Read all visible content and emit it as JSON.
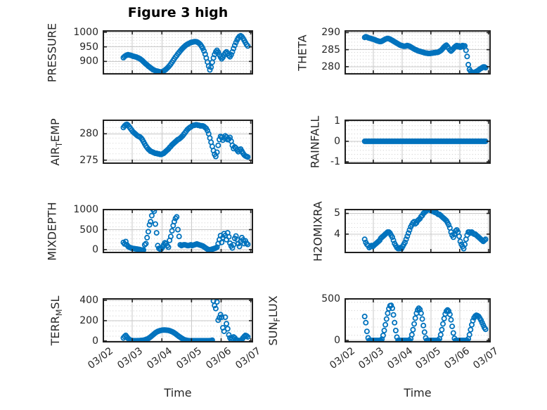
{
  "chart_data": {
    "type": "scatter",
    "figure_title": "Figure 3 high",
    "marker": "o",
    "colors": {
      "marker": "#0072bd",
      "major_grid": "#c9c9c9",
      "minor_grid_dots": "#c6c6c6",
      "axis_frame": "#1f1f1f",
      "text": "#262626",
      "title": "#000000"
    },
    "x_axis": {
      "label": "Time",
      "tick_labels": [
        "03/02",
        "03/03",
        "03/04",
        "03/05",
        "03/06",
        "03/07"
      ],
      "x_encoding": "days after 03/02",
      "xlim": [
        0,
        5.08
      ]
    },
    "subplots": [
      {
        "name": "pressure",
        "row": 0,
        "col": 0,
        "ylabel_parts": [
          {
            "t": "PRESSURE"
          }
        ],
        "yticks": [
          900,
          950,
          1000
        ],
        "ylim": [
          855,
          1007
        ],
        "yminor": 10,
        "series": {
          "x0": 0.7,
          "dx": 0.04,
          "y": [
            913,
            917,
            920,
            922,
            923,
            922,
            921,
            920,
            918,
            917,
            916,
            915,
            913,
            911,
            909,
            906,
            903,
            899,
            895,
            891,
            888,
            884,
            881,
            878,
            875,
            872,
            870,
            868,
            867,
            866,
            865,
            864,
            864,
            865,
            867,
            870,
            873,
            877,
            881,
            886,
            891,
            897,
            903,
            909,
            915,
            920,
            926,
            931,
            936,
            941,
            945,
            949,
            953,
            956,
            959,
            961,
            963,
            965,
            966,
            967,
            968,
            968,
            967,
            965,
            962,
            958,
            952,
            945,
            936,
            925,
            912,
            898,
            884,
            871,
            880,
            897,
            912,
            924,
            933,
            938,
            932,
            923,
            915,
            909,
            914,
            922,
            929,
            933,
            928,
            920,
            916,
            923,
            933,
            944,
            955,
            965,
            974,
            981,
            986,
            988,
            985,
            979,
            972,
            965,
            958,
            953
          ]
        }
      },
      {
        "name": "theta",
        "row": 0,
        "col": 1,
        "ylabel_parts": [
          {
            "t": "THETA"
          }
        ],
        "yticks": [
          280,
          285,
          290
        ],
        "ylim": [
          277.7,
          290.7
        ],
        "yminor": 1,
        "series": {
          "x0": 0.7,
          "dx": 0.04,
          "y": [
            288.6,
            288.8,
            288.7,
            288.5,
            288.4,
            288.3,
            288.2,
            288.1,
            288.0,
            287.9,
            287.7,
            287.6,
            287.5,
            287.4,
            287.4,
            287.5,
            287.7,
            287.9,
            288.1,
            288.2,
            288.3,
            288.2,
            288.1,
            287.9,
            287.7,
            287.5,
            287.3,
            287.1,
            286.9,
            286.7,
            286.5,
            286.3,
            286.2,
            286.1,
            286.0,
            286.0,
            286.1,
            286.2,
            286.1,
            286.0,
            285.8,
            285.6,
            285.4,
            285.2,
            285.0,
            284.9,
            284.7,
            284.6,
            284.5,
            284.4,
            284.3,
            284.2,
            284.1,
            284.0,
            284.0,
            283.9,
            283.9,
            283.9,
            284.0,
            284.0,
            284.1,
            284.1,
            284.2,
            284.2,
            284.3,
            284.5,
            284.7,
            285.0,
            285.4,
            285.8,
            286.1,
            286.3,
            285.9,
            285.4,
            284.9,
            284.6,
            284.9,
            285.3,
            285.7,
            286.0,
            286.2,
            285.9,
            286.1,
            285.7,
            286.0,
            286.2,
            285.9,
            286.1,
            284.8,
            283.0,
            280.6,
            279.2,
            278.7,
            278.4,
            278.2,
            278.3,
            278.4,
            278.6,
            278.8,
            279.0,
            279.3,
            279.5,
            279.7,
            279.9,
            279.9,
            279.7
          ]
        }
      },
      {
        "name": "air_temp",
        "row": 1,
        "col": 0,
        "ylabel_parts": [
          {
            "t": "AIR"
          },
          {
            "t": "T",
            "sub": true
          },
          {
            "t": "EMP"
          }
        ],
        "yticks": [
          275,
          280
        ],
        "ylim": [
          274.3,
          282.7
        ],
        "yminor": 1,
        "series": {
          "x0": 0.7,
          "dx": 0.04,
          "y": [
            281.2,
            281.5,
            281.7,
            281.8,
            281.6,
            281.3,
            281.0,
            280.7,
            280.4,
            280.2,
            280.0,
            279.8,
            279.6,
            279.5,
            279.4,
            279.2,
            278.9,
            278.5,
            278.1,
            277.7,
            277.4,
            277.1,
            276.9,
            276.7,
            276.6,
            276.5,
            276.4,
            276.3,
            276.3,
            276.2,
            276.2,
            276.1,
            276.1,
            276.2,
            276.3,
            276.5,
            276.7,
            276.9,
            277.1,
            277.4,
            277.6,
            277.9,
            278.1,
            278.3,
            278.5,
            278.7,
            278.9,
            279.0,
            279.2,
            279.4,
            279.6,
            279.9,
            280.2,
            280.5,
            280.8,
            281.0,
            281.2,
            281.3,
            281.5,
            281.6,
            281.6,
            281.7,
            281.7,
            281.6,
            281.6,
            281.5,
            281.5,
            281.5,
            281.4,
            281.2,
            281.0,
            280.6,
            280.0,
            279.2,
            278.4,
            277.6,
            276.8,
            276.1,
            275.7,
            276.5,
            277.8,
            278.9,
            279.5,
            279.3,
            278.8,
            279.2,
            279.6,
            279.4,
            278.9,
            279.0,
            279.3,
            278.6,
            277.8,
            277.2,
            277.5,
            277.3,
            276.9,
            276.6,
            276.9,
            277.1,
            276.7,
            276.3,
            276.0,
            275.8,
            275.7,
            275.6
          ]
        }
      },
      {
        "name": "rainfall",
        "row": 1,
        "col": 1,
        "ylabel_parts": [
          {
            "t": "RAINFALL"
          }
        ],
        "yticks": [
          -1,
          0,
          1
        ],
        "ylim": [
          -1.1,
          1.06
        ],
        "yminor": 0.2,
        "series": {
          "x0": 0.7,
          "dx": 0.04,
          "y": [
            0,
            0,
            0,
            0,
            0,
            0,
            0,
            0,
            0,
            0,
            0,
            0,
            0,
            0,
            0,
            0,
            0,
            0,
            0,
            0,
            0,
            0,
            0,
            0,
            0,
            0,
            0,
            0,
            0,
            0,
            0,
            0,
            0,
            0,
            0,
            0,
            0,
            0,
            0,
            0,
            0,
            0,
            0,
            0,
            0,
            0,
            0,
            0,
            0,
            0,
            0,
            0,
            0,
            0,
            0,
            0,
            0,
            0,
            0,
            0,
            0,
            0,
            0,
            0,
            0,
            0,
            0,
            0,
            0,
            0,
            0,
            0,
            0,
            0,
            0,
            0,
            0,
            0,
            0,
            0,
            0,
            0,
            0,
            0,
            0,
            0,
            0,
            0,
            0,
            0,
            0,
            0,
            0,
            0,
            0,
            0,
            0,
            0,
            0,
            0,
            0,
            0,
            0,
            0,
            0,
            0
          ]
        }
      },
      {
        "name": "mixdepth",
        "row": 2,
        "col": 0,
        "ylabel_parts": [
          {
            "t": "MIXDEPTH"
          }
        ],
        "yticks": [
          0,
          500,
          1000
        ],
        "ylim": [
          -90,
          1020
        ],
        "yminor": 100,
        "series": {
          "x0": 0.7,
          "dx": 0.04,
          "y": [
            180,
            140,
            200,
            120,
            80,
            60,
            45,
            35,
            30,
            25,
            20,
            15,
            10,
            5,
            0,
            -10,
            -15,
            -10,
            120,
            150,
            300,
            450,
            620,
            700,
            850,
            1000,
            960,
            640,
            420,
            100,
            30,
            10,
            20,
            60,
            120,
            170,
            150,
            100,
            60,
            230,
            330,
            470,
            600,
            700,
            780,
            820,
            500,
            330,
            120,
            100,
            110,
            120,
            120,
            110,
            100,
            100,
            110,
            120,
            100,
            110,
            120,
            130,
            140,
            130,
            120,
            110,
            100,
            90,
            70,
            50,
            30,
            10,
            0,
            -10,
            0,
            10,
            20,
            30,
            40,
            60,
            150,
            250,
            350,
            180,
            300,
            400,
            350,
            250,
            420,
            320,
            160,
            90,
            40,
            120,
            280,
            340,
            250,
            150,
            80,
            200,
            300,
            240,
            150,
            220,
            160,
            130
          ]
        }
      },
      {
        "name": "h2omixra",
        "row": 2,
        "col": 1,
        "ylabel_parts": [
          {
            "t": "H2OMIXRA"
          }
        ],
        "yticks": [
          4,
          5
        ],
        "ylim": [
          3.08,
          5.22
        ],
        "yminor": 0.2,
        "series": {
          "x0": 0.7,
          "dx": 0.04,
          "y": [
            3.75,
            3.6,
            3.5,
            3.45,
            3.35,
            3.4,
            3.45,
            3.4,
            3.45,
            3.5,
            3.55,
            3.6,
            3.65,
            3.7,
            3.8,
            3.85,
            3.9,
            3.95,
            4.0,
            4.05,
            4.1,
            4.1,
            4.05,
            3.95,
            3.85,
            3.7,
            3.55,
            3.45,
            3.35,
            3.3,
            3.3,
            3.35,
            3.3,
            3.4,
            3.5,
            3.6,
            3.75,
            3.9,
            4.05,
            4.2,
            4.35,
            4.45,
            4.55,
            4.6,
            4.5,
            4.55,
            4.65,
            4.7,
            4.75,
            4.85,
            4.9,
            5.0,
            5.05,
            5.1,
            5.15,
            5.2,
            5.2,
            5.15,
            5.15,
            5.1,
            5.1,
            5.05,
            5.05,
            5.0,
            4.95,
            4.95,
            4.9,
            4.85,
            4.8,
            4.75,
            4.7,
            4.65,
            4.55,
            4.45,
            4.3,
            4.1,
            3.95,
            3.85,
            4.0,
            4.15,
            4.2,
            4.1,
            3.9,
            3.65,
            3.5,
            3.4,
            3.3,
            3.5,
            3.75,
            3.95,
            4.1,
            4.1,
            4.05,
            4.1,
            4.05,
            4.0,
            4.0,
            3.95,
            3.9,
            3.85,
            3.8,
            3.75,
            3.7,
            3.65,
            3.7,
            3.75
          ]
        }
      },
      {
        "name": "terr_msl",
        "row": 3,
        "col": 0,
        "ylabel_parts": [
          {
            "t": "TERR"
          },
          {
            "t": "M",
            "sub": true
          },
          {
            "t": "SL"
          }
        ],
        "yticks": [
          0,
          200,
          400
        ],
        "ylim": [
          -15,
          422
        ],
        "yminor": 50,
        "series": {
          "x0": 0.7,
          "dx": 0.04,
          "y": [
            30,
            45,
            55,
            40,
            25,
            15,
            8,
            5,
            3,
            2,
            2,
            2,
            3,
            3,
            4,
            5,
            6,
            8,
            10,
            14,
            18,
            24,
            32,
            40,
            50,
            60,
            70,
            80,
            88,
            94,
            98,
            102,
            105,
            107,
            108,
            108,
            107,
            106,
            104,
            101,
            97,
            92,
            86,
            79,
            71,
            62,
            53,
            44,
            36,
            28,
            21,
            15,
            10,
            7,
            5,
            3,
            2,
            2,
            2,
            2,
            2,
            2,
            2,
            2,
            2,
            2,
            2,
            2,
            2,
            2,
            2,
            2,
            2,
            3,
            4,
            8,
            395,
            350,
            320,
            385,
            205,
            230,
            260,
            235,
            130,
            95,
            235,
            170,
            120,
            60,
            30,
            15,
            25,
            40,
            30,
            15,
            8,
            5,
            3,
            5,
            15,
            30,
            45,
            55,
            50,
            40
          ]
        }
      },
      {
        "name": "sun_flux",
        "row": 3,
        "col": 1,
        "ylabel_parts": [
          {
            "t": "SUN"
          },
          {
            "t": "F",
            "sub": true
          },
          {
            "t": "LUX"
          }
        ],
        "yticks": [
          0,
          500
        ],
        "ylim": [
          -25,
          512
        ],
        "yminor": 100,
        "series": {
          "x0": 0.7,
          "dx": 0.04,
          "y": [
            290,
            215,
            110,
            30,
            0,
            0,
            0,
            0,
            0,
            0,
            0,
            0,
            0,
            0,
            0,
            15,
            60,
            120,
            190,
            260,
            330,
            385,
            420,
            425,
            390,
            310,
            215,
            120,
            40,
            0,
            0,
            0,
            0,
            0,
            0,
            0,
            0,
            0,
            0,
            0,
            20,
            70,
            130,
            200,
            270,
            330,
            370,
            390,
            375,
            330,
            260,
            180,
            100,
            30,
            0,
            0,
            0,
            0,
            0,
            0,
            0,
            0,
            0,
            0,
            0,
            20,
            70,
            130,
            200,
            265,
            320,
            355,
            370,
            355,
            315,
            250,
            170,
            90,
            25,
            0,
            0,
            0,
            0,
            0,
            0,
            0,
            0,
            0,
            0,
            0,
            20,
            70,
            130,
            190,
            240,
            275,
            295,
            305,
            300,
            290,
            270,
            245,
            215,
            185,
            155,
            135
          ]
        }
      }
    ]
  }
}
